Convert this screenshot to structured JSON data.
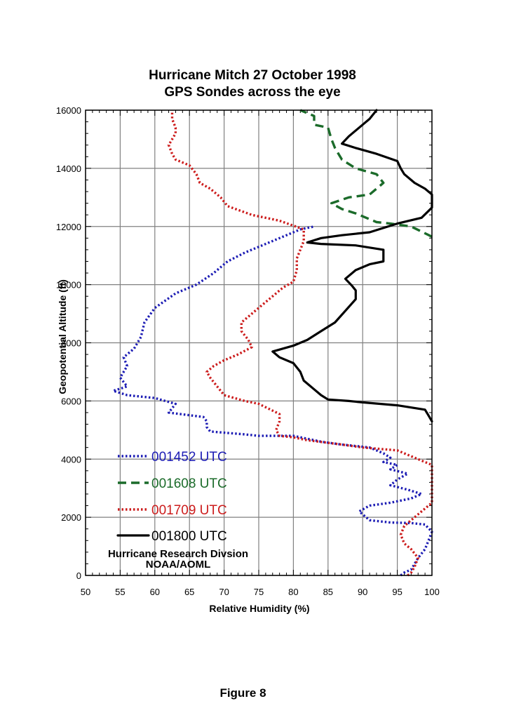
{
  "figure_label": "Figure 8",
  "chart_data": {
    "type": "line",
    "title": "Hurricane Mitch 27 October 1998",
    "subtitle": "GPS Sondes across the eye",
    "xlabel": "Relative Humidity (%)",
    "ylabel": "Geopotential Altitude (ft)",
    "xlim": [
      50,
      100
    ],
    "ylim": [
      0,
      16000
    ],
    "x_ticks": [
      "50",
      "55",
      "60",
      "65",
      "70",
      "75",
      "80",
      "85",
      "90",
      "95",
      "100"
    ],
    "y_ticks": [
      "0",
      "2000",
      "4000",
      "6000",
      "8000",
      "10000",
      "12000",
      "14000",
      "16000"
    ],
    "grid": true,
    "legend_position": "bottom-left inside",
    "credit_line1": "Hurricane Research Divsion",
    "credit_line2": "NOAA/AOML",
    "series": [
      {
        "name": "001452 UTC",
        "color": "#1c1cb4",
        "dash": "dotted",
        "points": [
          [
            95.5,
            0
          ],
          [
            96,
            100
          ],
          [
            97,
            200
          ],
          [
            97.5,
            400
          ],
          [
            98,
            600
          ],
          [
            99,
            900
          ],
          [
            99.5,
            1200
          ],
          [
            100,
            1500
          ],
          [
            99,
            1750
          ],
          [
            97,
            1800
          ],
          [
            94,
            1820
          ],
          [
            91,
            1900
          ],
          [
            90,
            2100
          ],
          [
            89.5,
            2200
          ],
          [
            91,
            2400
          ],
          [
            94,
            2500
          ],
          [
            97,
            2650
          ],
          [
            98.5,
            2800
          ],
          [
            96.5,
            2950
          ],
          [
            94,
            3100
          ],
          [
            95,
            3300
          ],
          [
            96.5,
            3500
          ],
          [
            94,
            3650
          ],
          [
            95,
            3800
          ],
          [
            93,
            3900
          ],
          [
            94,
            4050
          ],
          [
            93,
            4200
          ],
          [
            91,
            4400
          ],
          [
            87,
            4500
          ],
          [
            84,
            4600
          ],
          [
            80,
            4800
          ],
          [
            75,
            4800
          ],
          [
            73,
            4850
          ],
          [
            68,
            4950
          ],
          [
            67.5,
            5100
          ],
          [
            67.5,
            5300
          ],
          [
            67,
            5450
          ],
          [
            62,
            5600
          ],
          [
            63,
            5900
          ],
          [
            60,
            6100
          ],
          [
            56,
            6200
          ],
          [
            54,
            6350
          ],
          [
            56,
            6500
          ],
          [
            55,
            6800
          ],
          [
            56,
            7200
          ],
          [
            55.5,
            7500
          ],
          [
            57,
            7800
          ],
          [
            58,
            8200
          ],
          [
            58.5,
            8700
          ],
          [
            60,
            9200
          ],
          [
            63,
            9700
          ],
          [
            66,
            10000
          ],
          [
            68.5,
            10400
          ],
          [
            70.5,
            10800
          ],
          [
            73,
            11100
          ],
          [
            76,
            11400
          ],
          [
            79,
            11700
          ],
          [
            81,
            11900
          ],
          [
            83,
            12000
          ]
        ]
      },
      {
        "name": "001608 UTC",
        "color": "#1b6b2a",
        "dash": "dashed",
        "points": [
          [
            100,
            11650
          ],
          [
            97,
            12000
          ],
          [
            94,
            12100
          ],
          [
            92,
            12150
          ],
          [
            89,
            12450
          ],
          [
            87,
            12600
          ],
          [
            85.5,
            12800
          ],
          [
            88,
            13000
          ],
          [
            91,
            13100
          ],
          [
            93,
            13500
          ],
          [
            92,
            13800
          ],
          [
            89,
            14000
          ],
          [
            87,
            14300
          ],
          [
            86,
            14700
          ],
          [
            85.5,
            15000
          ],
          [
            85,
            15400
          ],
          [
            83,
            15500
          ],
          [
            83,
            15800
          ],
          [
            81,
            16000
          ]
        ]
      },
      {
        "name": "001709 UTC",
        "color": "#cc1c1c",
        "dash": "dotted",
        "points": [
          [
            96.5,
            0
          ],
          [
            97,
            100
          ],
          [
            97.5,
            300
          ],
          [
            98,
            600
          ],
          [
            97,
            900
          ],
          [
            96,
            1100
          ],
          [
            95.5,
            1400
          ],
          [
            96,
            1700
          ],
          [
            98,
            2100
          ],
          [
            100,
            2500
          ],
          [
            100,
            3000
          ],
          [
            100,
            3800
          ],
          [
            98,
            4000
          ],
          [
            95,
            4300
          ],
          [
            90,
            4400
          ],
          [
            87,
            4500
          ],
          [
            82,
            4650
          ],
          [
            80,
            4750
          ],
          [
            78,
            4800
          ],
          [
            77.5,
            5000
          ],
          [
            78,
            5300
          ],
          [
            78,
            5550
          ],
          [
            75,
            5900
          ],
          [
            73,
            6000
          ],
          [
            70,
            6200
          ],
          [
            69,
            6500
          ],
          [
            68,
            6800
          ],
          [
            67.5,
            7000
          ],
          [
            68.5,
            7200
          ],
          [
            70,
            7400
          ],
          [
            72,
            7600
          ],
          [
            74,
            7850
          ],
          [
            73.5,
            8100
          ],
          [
            72.5,
            8400
          ],
          [
            72.5,
            8700
          ],
          [
            74,
            9000
          ],
          [
            75.5,
            9300
          ],
          [
            77,
            9600
          ],
          [
            78.5,
            9900
          ],
          [
            80,
            10100
          ],
          [
            80.5,
            10500
          ],
          [
            80.5,
            10900
          ],
          [
            81,
            11200
          ],
          [
            81.5,
            11500
          ],
          [
            81.5,
            11900
          ],
          [
            78,
            12200
          ],
          [
            74,
            12400
          ],
          [
            70.5,
            12700
          ],
          [
            69.5,
            13000
          ],
          [
            68,
            13300
          ],
          [
            66.5,
            13500
          ],
          [
            66,
            13800
          ],
          [
            65,
            14100
          ],
          [
            63,
            14300
          ],
          [
            62.5,
            14500
          ],
          [
            62,
            14800
          ],
          [
            63,
            15200
          ],
          [
            63,
            15400
          ],
          [
            62.5,
            15700
          ],
          [
            62.5,
            16000
          ]
        ]
      },
      {
        "name": "001800 UTC",
        "color": "#000000",
        "dash": "solid",
        "points": [
          [
            100,
            5300
          ],
          [
            99.5,
            5500
          ],
          [
            99,
            5700
          ],
          [
            95,
            5850
          ],
          [
            90,
            5950
          ],
          [
            88,
            6000
          ],
          [
            85,
            6050
          ],
          [
            84,
            6200
          ],
          [
            83,
            6400
          ],
          [
            81.5,
            6700
          ],
          [
            81,
            7000
          ],
          [
            80,
            7300
          ],
          [
            78,
            7500
          ],
          [
            77,
            7700
          ],
          [
            80,
            7900
          ],
          [
            82,
            8100
          ],
          [
            84,
            8400
          ],
          [
            86,
            8700
          ],
          [
            87.5,
            9100
          ],
          [
            89,
            9500
          ],
          [
            89,
            9800
          ],
          [
            88.5,
            9950
          ],
          [
            87.5,
            10200
          ],
          [
            89,
            10500
          ],
          [
            91,
            10700
          ],
          [
            93,
            10800
          ],
          [
            93,
            11200
          ],
          [
            89,
            11350
          ],
          [
            84,
            11400
          ],
          [
            82,
            11450
          ],
          [
            84,
            11600
          ],
          [
            87,
            11700
          ],
          [
            91,
            11800
          ],
          [
            95,
            12100
          ],
          [
            98.5,
            12300
          ],
          [
            100,
            12650
          ],
          [
            100,
            12900
          ],
          [
            100,
            13100
          ],
          [
            99,
            13300
          ],
          [
            97.5,
            13500
          ],
          [
            96,
            13800
          ],
          [
            95.5,
            14000
          ],
          [
            95,
            14250
          ],
          [
            92,
            14500
          ],
          [
            89,
            14700
          ],
          [
            87,
            14850
          ],
          [
            88,
            15100
          ],
          [
            90,
            15500
          ],
          [
            91,
            15700
          ],
          [
            92,
            16000
          ]
        ]
      }
    ]
  }
}
